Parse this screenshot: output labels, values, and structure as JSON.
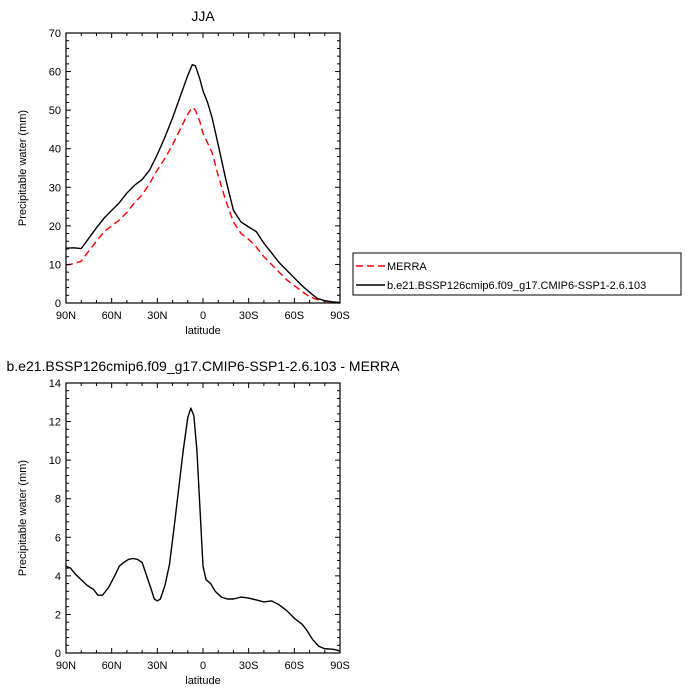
{
  "chart_data": [
    {
      "type": "line",
      "title": "JJA",
      "xlabel": "latitude",
      "ylabel": "Precipitable water (mm)",
      "xlim": [
        90,
        -90
      ],
      "ylim": [
        0,
        70
      ],
      "xticks": [
        90,
        60,
        30,
        0,
        -30,
        -60,
        -90
      ],
      "xtick_labels": [
        "90N",
        "60N",
        "30N",
        "0",
        "30S",
        "60S",
        "90S"
      ],
      "yticks": [
        0,
        10,
        20,
        30,
        40,
        50,
        60,
        70
      ],
      "ytick_labels": [
        "0",
        "10",
        "20",
        "30",
        "40",
        "50",
        "60",
        "70"
      ],
      "legend_position": "right",
      "series": [
        {
          "name": "MERRA",
          "color": "#ff0000",
          "dash": "dashed",
          "x": [
            90,
            85,
            80,
            75,
            70,
            65,
            60,
            55,
            50,
            45,
            40,
            35,
            30,
            25,
            20,
            15,
            10,
            7,
            5,
            2,
            0,
            -3,
            -6,
            -10,
            -15,
            -20,
            -25,
            -30,
            -35,
            -40,
            -45,
            -50,
            -55,
            -60,
            -65,
            -70,
            -75,
            -80,
            -85,
            -90
          ],
          "y": [
            9.8,
            10.2,
            10.8,
            13.5,
            16,
            18.5,
            20,
            21.5,
            23.5,
            26,
            28,
            31,
            34.5,
            37.5,
            41,
            45,
            49,
            50.7,
            50,
            47,
            44,
            41.5,
            39,
            33,
            26.5,
            21,
            18,
            16.5,
            14.5,
            12,
            10,
            8,
            6,
            4.5,
            3,
            1.6,
            0.9,
            0.5,
            0.2,
            0
          ]
        },
        {
          "name": "b.e21.BSSP126cmip6.f09_g17.CMIP6-SSP1-2.6.103",
          "color": "#000000",
          "dash": "solid",
          "x": [
            90,
            85,
            80,
            75,
            70,
            65,
            60,
            55,
            50,
            45,
            40,
            35,
            30,
            25,
            20,
            15,
            10,
            7,
            5,
            2,
            0,
            -3,
            -6,
            -10,
            -15,
            -20,
            -25,
            -30,
            -35,
            -40,
            -45,
            -50,
            -55,
            -60,
            -65,
            -70,
            -75,
            -80,
            -85,
            -90
          ],
          "y": [
            14.2,
            14.3,
            14.1,
            16.8,
            19.5,
            22,
            24,
            26,
            28.5,
            30.5,
            32,
            34.5,
            38.5,
            43,
            48,
            53.5,
            59,
            61.8,
            61.5,
            58,
            55,
            52,
            48,
            41,
            32,
            24,
            21,
            19.7,
            18.5,
            15.5,
            13,
            10.5,
            8.5,
            6.5,
            4.5,
            2.8,
            1.2,
            0.6,
            0.3,
            0.1
          ]
        }
      ]
    },
    {
      "type": "line",
      "title": "b.e21.BSSP126cmip6.f09_g17.CMIP6-SSP1-2.6.103 - MERRA",
      "xlabel": "latitude",
      "ylabel": "Precipitable water (mm)",
      "xlim": [
        90,
        -90
      ],
      "ylim": [
        0,
        14
      ],
      "xticks": [
        90,
        60,
        30,
        0,
        -30,
        -60,
        -90
      ],
      "xtick_labels": [
        "90N",
        "60N",
        "30N",
        "0",
        "30S",
        "60S",
        "90S"
      ],
      "yticks": [
        0,
        2,
        4,
        6,
        8,
        10,
        12,
        14
      ],
      "ytick_labels": [
        "0",
        "2",
        "4",
        "6",
        "8",
        "10",
        "12",
        "14"
      ],
      "series": [
        {
          "color": "#000000",
          "dash": "solid",
          "x": [
            90,
            87,
            84,
            80,
            76,
            72,
            69,
            66,
            62,
            58,
            55,
            52,
            49,
            46,
            43,
            40,
            37,
            34,
            32,
            30,
            28,
            25,
            22,
            19,
            16,
            13,
            10,
            8,
            6,
            4,
            2,
            0,
            -2,
            -5,
            -8,
            -12,
            -16,
            -20,
            -25,
            -30,
            -35,
            -40,
            -45,
            -50,
            -55,
            -60,
            -65,
            -68,
            -72,
            -76,
            -80,
            -85,
            -88,
            -90
          ],
          "y": [
            4.5,
            4.4,
            4.1,
            3.8,
            3.5,
            3.3,
            3.0,
            3.0,
            3.4,
            4.0,
            4.5,
            4.7,
            4.85,
            4.9,
            4.85,
            4.7,
            4.0,
            3.3,
            2.8,
            2.7,
            2.8,
            3.5,
            4.6,
            6.5,
            8.5,
            10.5,
            12.2,
            12.7,
            12.3,
            10.5,
            7.5,
            4.5,
            3.8,
            3.6,
            3.2,
            2.9,
            2.8,
            2.8,
            2.9,
            2.85,
            2.75,
            2.65,
            2.7,
            2.5,
            2.2,
            1.8,
            1.5,
            1.2,
            0.7,
            0.35,
            0.22,
            0.2,
            0.15,
            0.1
          ]
        }
      ]
    }
  ]
}
